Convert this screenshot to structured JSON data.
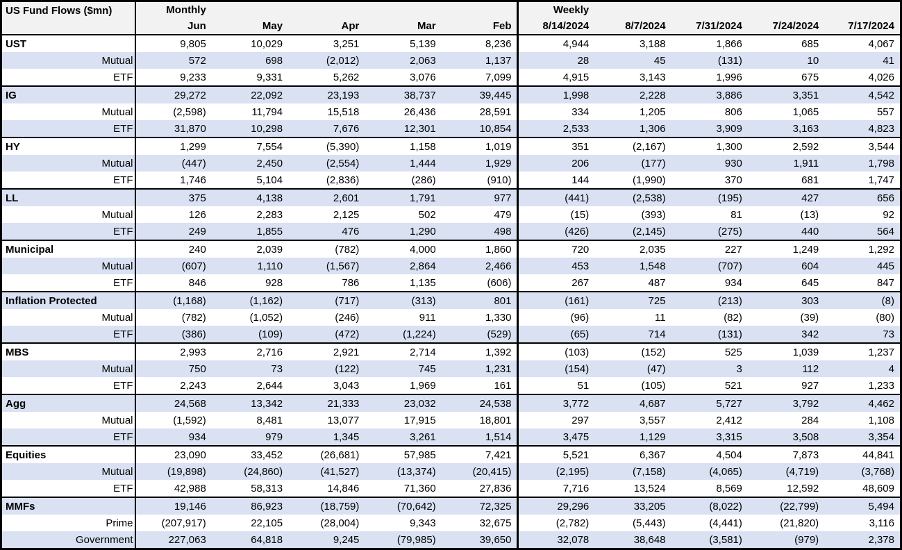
{
  "colors": {
    "header_background": "#F2F2F2",
    "row_shade": "#D9E1F2",
    "border": "#000000",
    "text": "#000000"
  },
  "chart_data": {
    "type": "table",
    "title": "US Fund Flows ($mn)",
    "number_format": "thousands separators, negatives in parentheses",
    "sections": [
      {
        "label": "Monthly",
        "columns": [
          "Jun",
          "May",
          "Apr",
          "Mar",
          "Feb"
        ]
      },
      {
        "label": "Weekly",
        "columns": [
          "8/14/2024",
          "8/7/2024",
          "7/31/2024",
          "7/24/2024",
          "7/17/2024"
        ]
      }
    ],
    "groups": [
      {
        "name": "UST",
        "rows": [
          {
            "label": "UST",
            "values": [
              9805,
              10029,
              3251,
              5139,
              8236,
              4944,
              3188,
              1866,
              685,
              4067
            ]
          },
          {
            "label": "Mutual",
            "values": [
              572,
              698,
              -2012,
              2063,
              1137,
              28,
              45,
              -131,
              10,
              41
            ]
          },
          {
            "label": "ETF",
            "values": [
              9233,
              9331,
              5262,
              3076,
              7099,
              4915,
              3143,
              1996,
              675,
              4026
            ]
          }
        ]
      },
      {
        "name": "IG",
        "rows": [
          {
            "label": "IG",
            "values": [
              29272,
              22092,
              23193,
              38737,
              39445,
              1998,
              2228,
              3886,
              3351,
              4542
            ]
          },
          {
            "label": "Mutual",
            "values": [
              -2598,
              11794,
              15518,
              26436,
              28591,
              334,
              1205,
              806,
              1065,
              557
            ]
          },
          {
            "label": "ETF",
            "values": [
              31870,
              10298,
              7676,
              12301,
              10854,
              2533,
              1306,
              3909,
              3163,
              4823
            ]
          }
        ]
      },
      {
        "name": "HY",
        "rows": [
          {
            "label": "HY",
            "values": [
              1299,
              7554,
              -5390,
              1158,
              1019,
              351,
              -2167,
              1300,
              2592,
              3544
            ]
          },
          {
            "label": "Mutual",
            "values": [
              -447,
              2450,
              -2554,
              1444,
              1929,
              206,
              -177,
              930,
              1911,
              1798
            ]
          },
          {
            "label": "ETF",
            "values": [
              1746,
              5104,
              -2836,
              -286,
              -910,
              144,
              -1990,
              370,
              681,
              1747
            ]
          }
        ]
      },
      {
        "name": "LL",
        "rows": [
          {
            "label": "LL",
            "values": [
              375,
              4138,
              2601,
              1791,
              977,
              -441,
              -2538,
              -195,
              427,
              656
            ]
          },
          {
            "label": "Mutual",
            "values": [
              126,
              2283,
              2125,
              502,
              479,
              -15,
              -393,
              81,
              -13,
              92
            ]
          },
          {
            "label": "ETF",
            "values": [
              249,
              1855,
              476,
              1290,
              498,
              -426,
              -2145,
              -275,
              440,
              564
            ]
          }
        ]
      },
      {
        "name": "Municipal",
        "rows": [
          {
            "label": "Municipal",
            "values": [
              240,
              2039,
              -782,
              4000,
              1860,
              720,
              2035,
              227,
              1249,
              1292
            ]
          },
          {
            "label": "Mutual",
            "values": [
              -607,
              1110,
              -1567,
              2864,
              2466,
              453,
              1548,
              -707,
              604,
              445
            ]
          },
          {
            "label": "ETF",
            "values": [
              846,
              928,
              786,
              1135,
              -606,
              267,
              487,
              934,
              645,
              847
            ]
          }
        ]
      },
      {
        "name": "Inflation Protected",
        "rows": [
          {
            "label": "Inflation Protected",
            "values": [
              -1168,
              -1162,
              -717,
              -313,
              801,
              -161,
              725,
              -213,
              303,
              -8
            ]
          },
          {
            "label": "Mutual",
            "values": [
              -782,
              -1052,
              -246,
              911,
              1330,
              -96,
              11,
              -82,
              -39,
              -80
            ]
          },
          {
            "label": "ETF",
            "values": [
              -386,
              -109,
              -472,
              -1224,
              -529,
              -65,
              714,
              -131,
              342,
              73
            ]
          }
        ]
      },
      {
        "name": "MBS",
        "rows": [
          {
            "label": "MBS",
            "values": [
              2993,
              2716,
              2921,
              2714,
              1392,
              -103,
              -152,
              525,
              1039,
              1237
            ]
          },
          {
            "label": "Mutual",
            "values": [
              750,
              73,
              -122,
              745,
              1231,
              -154,
              -47,
              3,
              112,
              4
            ]
          },
          {
            "label": "ETF",
            "values": [
              2243,
              2644,
              3043,
              1969,
              161,
              51,
              -105,
              521,
              927,
              1233
            ]
          }
        ]
      },
      {
        "name": "Agg",
        "rows": [
          {
            "label": "Agg",
            "values": [
              24568,
              13342,
              21333,
              23032,
              24538,
              3772,
              4687,
              5727,
              3792,
              4462
            ]
          },
          {
            "label": "Mutual",
            "values": [
              -1592,
              8481,
              13077,
              17915,
              18801,
              297,
              3557,
              2412,
              284,
              1108
            ]
          },
          {
            "label": "ETF",
            "values": [
              934,
              979,
              1345,
              3261,
              1514,
              3475,
              1129,
              3315,
              3508,
              3354
            ]
          }
        ]
      },
      {
        "name": "Equities",
        "rows": [
          {
            "label": "Equities",
            "values": [
              23090,
              33452,
              -26681,
              57985,
              7421,
              5521,
              6367,
              4504,
              7873,
              44841
            ]
          },
          {
            "label": "Mutual",
            "values": [
              -19898,
              -24860,
              -41527,
              -13374,
              -20415,
              -2195,
              -7158,
              -4065,
              -4719,
              -3768
            ]
          },
          {
            "label": "ETF",
            "values": [
              42988,
              58313,
              14846,
              71360,
              27836,
              7716,
              13524,
              8569,
              12592,
              48609
            ]
          }
        ]
      },
      {
        "name": "MMFs",
        "rows": [
          {
            "label": "MMFs",
            "values": [
              19146,
              86923,
              -18759,
              -70642,
              72325,
              29296,
              33205,
              -8022,
              -22799,
              5494
            ]
          },
          {
            "label": "Prime",
            "values": [
              -207917,
              22105,
              -28004,
              9343,
              32675,
              -2782,
              -5443,
              -4441,
              -21820,
              3116
            ]
          },
          {
            "label": "Government",
            "values": [
              227063,
              64818,
              9245,
              -79985,
              39650,
              32078,
              38648,
              -3581,
              -979,
              2378
            ]
          }
        ]
      }
    ]
  }
}
